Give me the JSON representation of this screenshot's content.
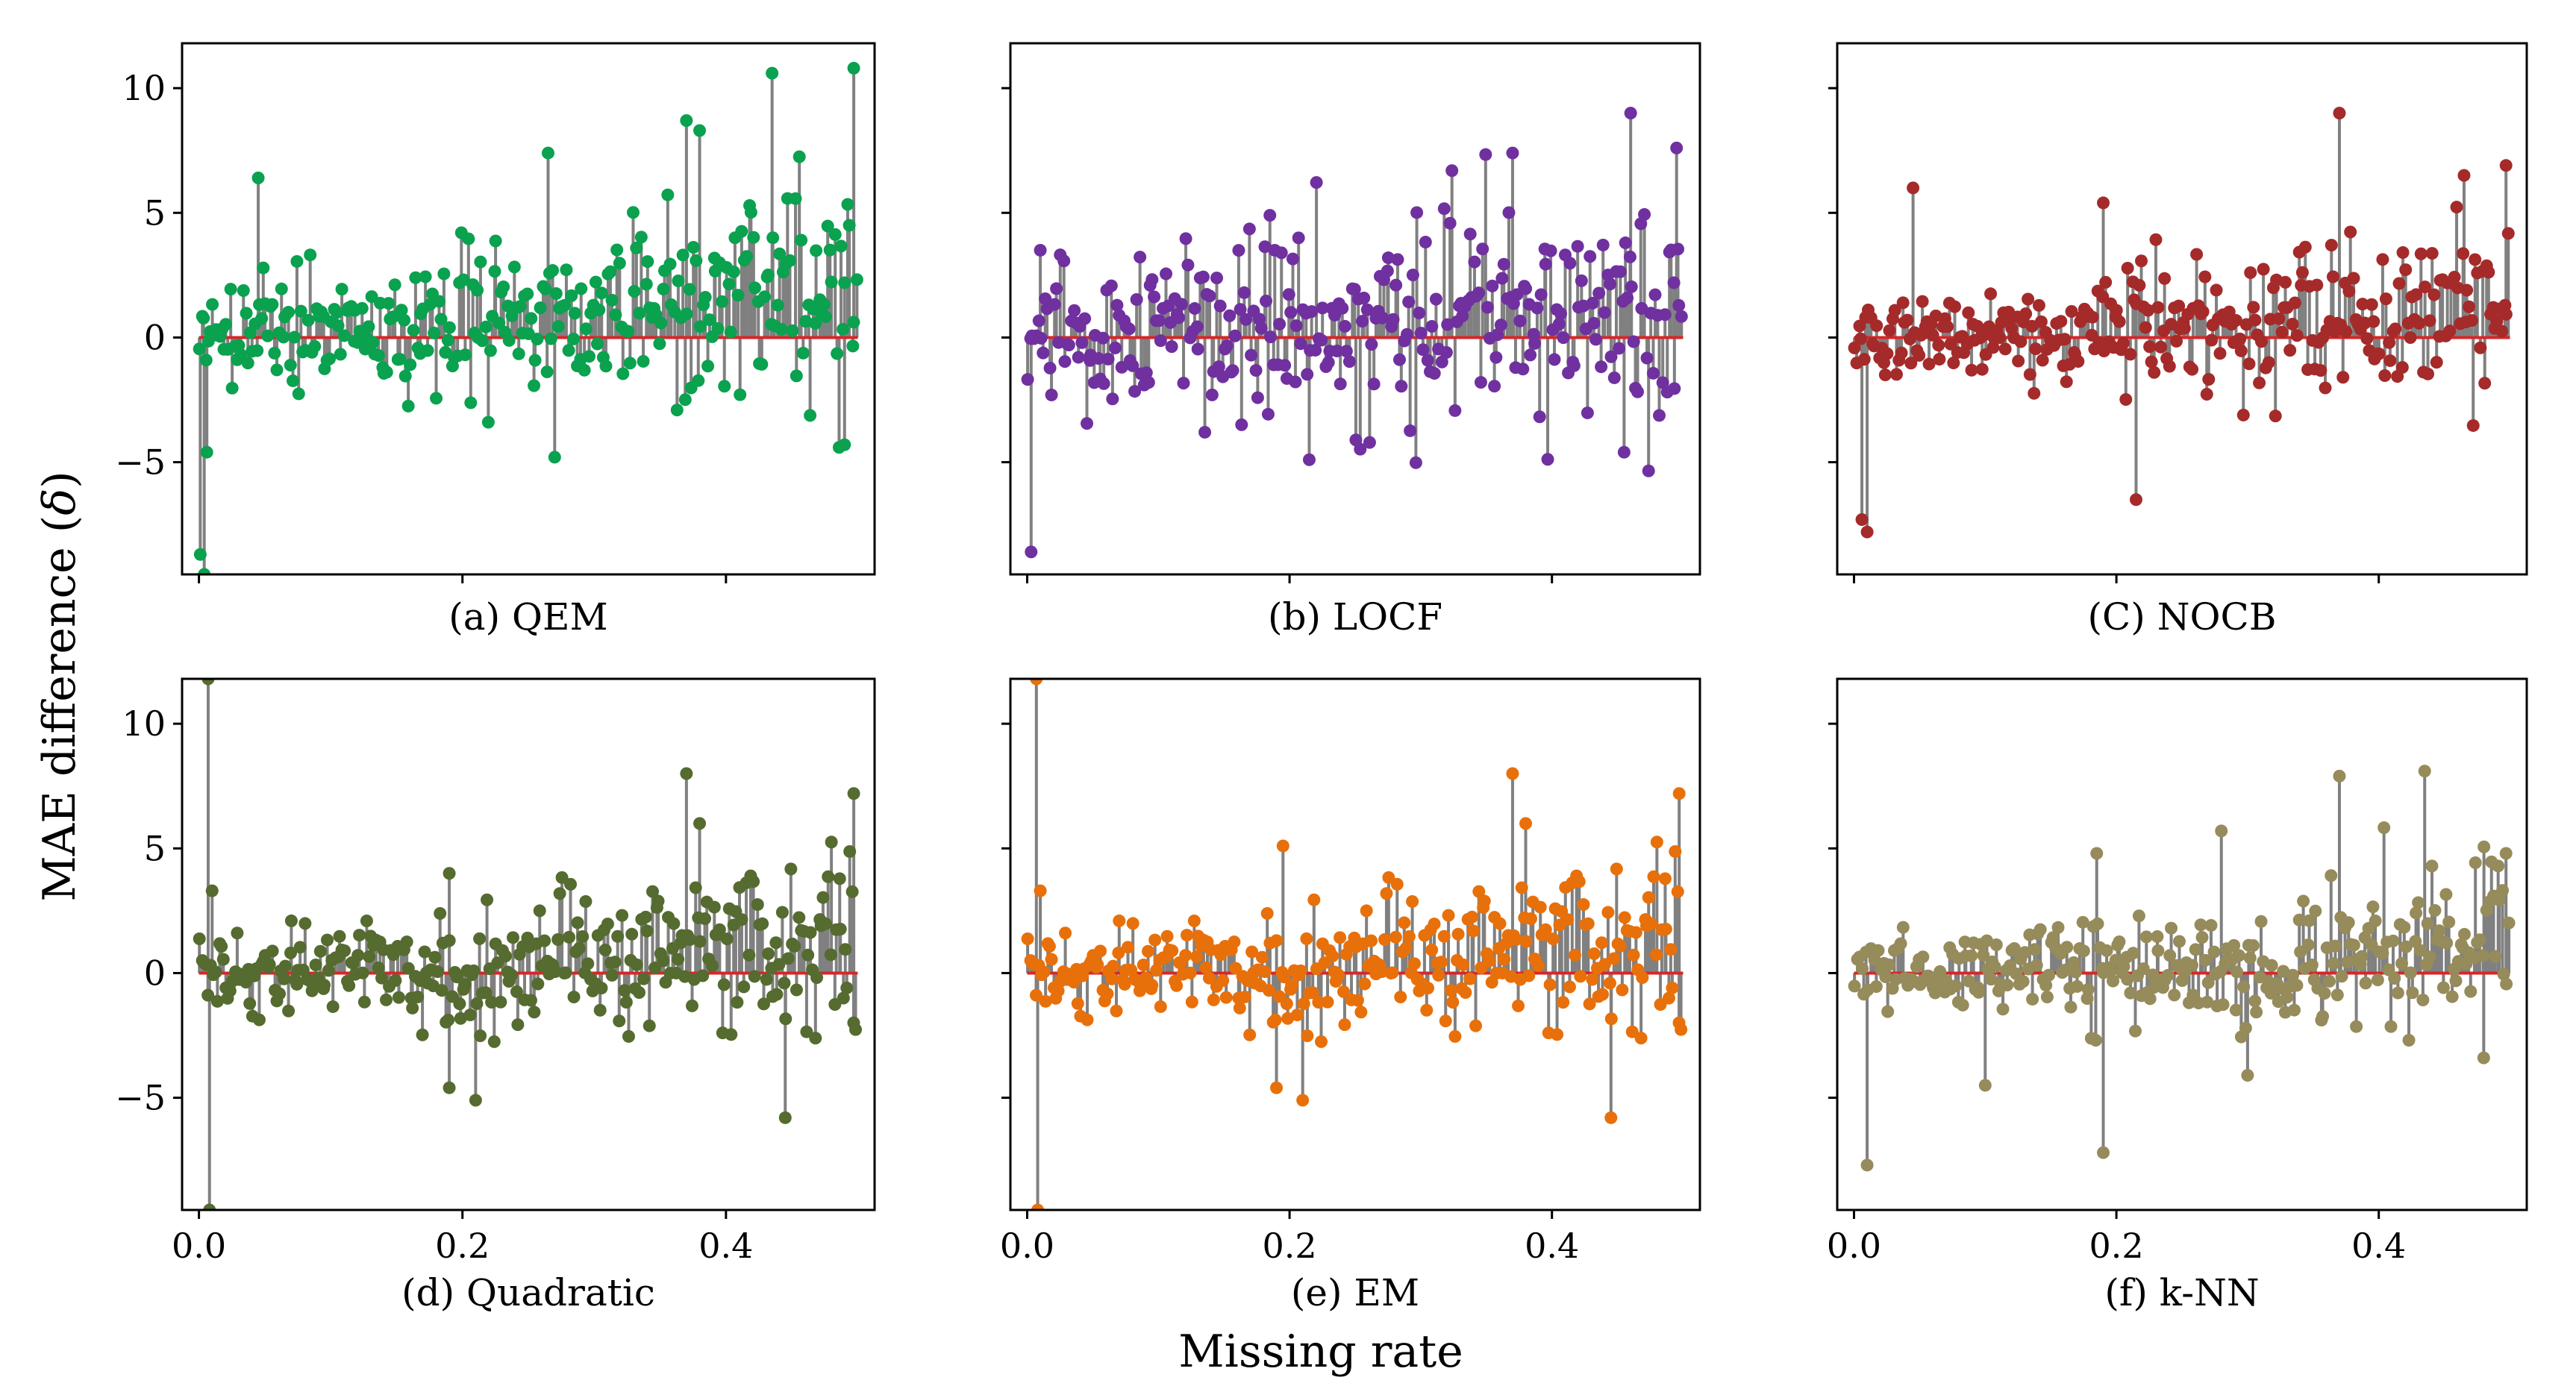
{
  "figure": {
    "ylabel_main": "MAE difference (",
    "ylabel_delta": "δ",
    "ylabel_close": ")",
    "xlabel": "Missing rate"
  },
  "colors": {
    "stem": "#808080",
    "baseline": "#d62728",
    "frame": "#000000"
  },
  "chart_data": [
    {
      "type": "stem",
      "id": "a",
      "caption": "(a) QEM",
      "color": "#0aa14f",
      "seed": 11,
      "x_range": [
        0,
        0.5
      ],
      "ylim": [
        -9.5,
        11.8
      ],
      "yticks": [
        10,
        5,
        0,
        -5
      ],
      "xticks": [
        0.0,
        0.2,
        0.4
      ],
      "n_points": 300,
      "trend": [
        0.4,
        2.2
      ],
      "spread": [
        0.9,
        2.2
      ],
      "outliers": [
        [
          0.001,
          -8.7
        ],
        [
          0.004,
          -9.5
        ],
        [
          0.006,
          -4.6
        ],
        [
          0.045,
          6.4
        ],
        [
          0.265,
          7.4
        ],
        [
          0.27,
          -4.8
        ],
        [
          0.37,
          8.7
        ],
        [
          0.38,
          8.3
        ],
        [
          0.435,
          10.6
        ],
        [
          0.49,
          -4.3
        ],
        [
          0.497,
          10.8
        ]
      ]
    },
    {
      "type": "stem",
      "id": "b",
      "caption": "(b) LOCF",
      "color": "#7030a0",
      "seed": 23,
      "x_range": [
        0,
        0.5
      ],
      "ylim": [
        -9.5,
        11.8
      ],
      "yticks": [
        10,
        5,
        0,
        -5
      ],
      "xticks": [
        0.0,
        0.2,
        0.4
      ],
      "n_points": 300,
      "trend": [
        0.0,
        1.4
      ],
      "spread": [
        1.3,
        2.3
      ],
      "outliers": [
        [
          0.003,
          -8.6
        ],
        [
          0.01,
          3.5
        ],
        [
          0.185,
          4.9
        ],
        [
          0.215,
          -4.9
        ],
        [
          0.37,
          7.4
        ],
        [
          0.455,
          -4.6
        ],
        [
          0.46,
          9.0
        ],
        [
          0.495,
          7.6
        ]
      ]
    },
    {
      "type": "stem",
      "id": "c",
      "caption": "(C) NOCB",
      "color": "#a52a2a",
      "seed": 37,
      "x_range": [
        0,
        0.5
      ],
      "ylim": [
        -9.5,
        11.8
      ],
      "yticks": [
        10,
        5,
        0,
        -5
      ],
      "xticks": [
        0.0,
        0.2,
        0.4
      ],
      "n_points": 300,
      "trend": [
        -0.1,
        1.8
      ],
      "spread": [
        0.6,
        1.9
      ],
      "outliers": [
        [
          0.006,
          -7.3
        ],
        [
          0.01,
          -7.8
        ],
        [
          0.045,
          6.0
        ],
        [
          0.19,
          5.4
        ],
        [
          0.215,
          -6.5
        ],
        [
          0.37,
          9.0
        ],
        [
          0.465,
          6.5
        ],
        [
          0.497,
          6.9
        ]
      ]
    },
    {
      "type": "stem",
      "id": "d",
      "caption": "(d) Quadratic",
      "color": "#556b2f",
      "seed": 53,
      "x_range": [
        0,
        0.5
      ],
      "ylim": [
        -9.5,
        11.8
      ],
      "yticks": [
        10,
        5,
        0,
        -5
      ],
      "xticks": [
        0.0,
        0.2,
        0.4
      ],
      "n_points": 300,
      "trend": [
        0.0,
        1.6
      ],
      "spread": [
        0.8,
        1.8
      ],
      "outliers": [
        [
          0.007,
          11.8
        ],
        [
          0.008,
          -9.5
        ],
        [
          0.01,
          3.3
        ],
        [
          0.19,
          4.0
        ],
        [
          0.19,
          -4.6
        ],
        [
          0.21,
          -5.1
        ],
        [
          0.37,
          8.0
        ],
        [
          0.38,
          6.0
        ],
        [
          0.445,
          -5.8
        ],
        [
          0.497,
          7.2
        ]
      ]
    },
    {
      "type": "stem",
      "id": "e",
      "caption": "(e) EM",
      "color": "#e8700a",
      "seed": 53,
      "x_range": [
        0,
        0.5
      ],
      "ylim": [
        -9.5,
        11.8
      ],
      "yticks": [
        10,
        5,
        0,
        -5
      ],
      "xticks": [
        0.0,
        0.2,
        0.4
      ],
      "n_points": 300,
      "trend": [
        0.0,
        1.6
      ],
      "spread": [
        0.8,
        1.8
      ],
      "outliers": [
        [
          0.007,
          11.8
        ],
        [
          0.008,
          -9.5
        ],
        [
          0.01,
          3.3
        ],
        [
          0.195,
          5.1
        ],
        [
          0.19,
          -4.6
        ],
        [
          0.21,
          -5.1
        ],
        [
          0.37,
          8.0
        ],
        [
          0.38,
          6.0
        ],
        [
          0.445,
          -5.8
        ],
        [
          0.497,
          7.2
        ]
      ]
    },
    {
      "type": "stem",
      "id": "f",
      "caption": "(f) k-NN",
      "color": "#968b5a",
      "seed": 71,
      "x_range": [
        0,
        0.5
      ],
      "ylim": [
        -9.5,
        11.8
      ],
      "yticks": [
        10,
        5,
        0,
        -5
      ],
      "xticks": [
        0.0,
        0.2,
        0.4
      ],
      "n_points": 300,
      "trend": [
        0.0,
        1.6
      ],
      "spread": [
        0.7,
        1.7
      ],
      "outliers": [
        [
          0.01,
          -7.7
        ],
        [
          0.1,
          -4.5
        ],
        [
          0.185,
          4.8
        ],
        [
          0.19,
          -7.2
        ],
        [
          0.28,
          5.7
        ],
        [
          0.3,
          -4.1
        ],
        [
          0.37,
          7.9
        ],
        [
          0.435,
          8.1
        ],
        [
          0.48,
          -3.4
        ],
        [
          0.497,
          4.8
        ]
      ]
    }
  ]
}
